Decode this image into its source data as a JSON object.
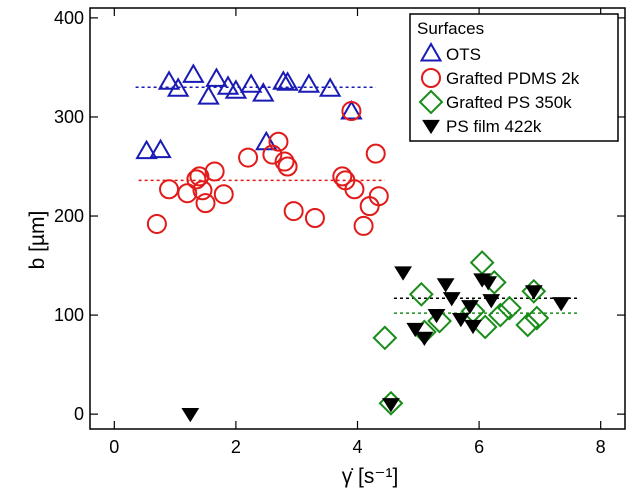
{
  "chart_data": {
    "type": "scatter",
    "xlabel": "γ̇ [s⁻¹]",
    "ylabel": "b [µm]",
    "xlim": [
      -0.4,
      8.4
    ],
    "ylim": [
      -15,
      410
    ],
    "xticks": [
      0,
      2,
      4,
      6,
      8
    ],
    "yticks": [
      0,
      100,
      200,
      300,
      400
    ],
    "legend": {
      "title": "Surfaces",
      "placement": "top-right",
      "entries": [
        "OTS",
        "Grafted PDMS 2k",
        "Grafted PS 350k",
        "PS film 422k"
      ]
    },
    "series": [
      {
        "name": "OTS",
        "marker": "triangle-up-open",
        "color": "#1a1ab5",
        "x": [
          0.53,
          0.76,
          0.9,
          1.05,
          1.3,
          1.55,
          1.68,
          1.87,
          2.0,
          2.25,
          2.45,
          2.5,
          2.78,
          2.85,
          3.2,
          3.55,
          3.9
        ],
        "y": [
          265,
          266,
          335,
          328,
          342,
          320,
          338,
          330,
          326,
          332,
          323,
          274,
          335,
          334,
          332,
          328,
          305
        ],
        "fit": {
          "x": [
            0.35,
            4.3
          ],
          "y": 330
        }
      },
      {
        "name": "Grafted PDMS 2k",
        "marker": "circle-open",
        "color": "#e11a1a",
        "x": [
          0.7,
          0.9,
          1.2,
          1.35,
          1.4,
          1.45,
          1.5,
          1.65,
          1.8,
          2.2,
          2.6,
          2.7,
          2.8,
          2.85,
          2.95,
          3.3,
          3.75,
          3.8,
          3.9,
          3.95,
          4.1,
          4.2,
          4.3,
          4.35
        ],
        "y": [
          192,
          227,
          223,
          237,
          240,
          226,
          213,
          245,
          222,
          259,
          262,
          275,
          255,
          250,
          205,
          198,
          240,
          236,
          306,
          227,
          190,
          210,
          263,
          220
        ],
        "fit": {
          "x": [
            0.4,
            4.45
          ],
          "y": 236
        }
      },
      {
        "name": "Grafted PS 350k",
        "marker": "diamond-open",
        "color": "#1a8c1a",
        "x": [
          4.45,
          4.55,
          5.05,
          5.1,
          5.35,
          5.9,
          6.05,
          6.1,
          6.25,
          6.35,
          6.5,
          6.8,
          6.9,
          6.95
        ],
        "y": [
          77,
          11,
          121,
          83,
          94,
          104,
          153,
          88,
          133,
          100,
          107,
          90,
          124,
          97
        ],
        "fit": {
          "x": [
            4.6,
            7.65
          ],
          "y": 102
        }
      },
      {
        "name": "PS film 422k",
        "marker": "triangle-down-filled",
        "color": "#000000",
        "x": [
          1.25,
          4.55,
          4.75,
          4.95,
          5.1,
          5.3,
          5.45,
          5.55,
          5.7,
          5.85,
          5.9,
          6.05,
          6.15,
          6.2,
          6.9,
          7.35
        ],
        "y": [
          0,
          10,
          143,
          86,
          77,
          100,
          131,
          117,
          96,
          109,
          89,
          136,
          133,
          115,
          124,
          112
        ],
        "fit": {
          "x": [
            4.6,
            7.65
          ],
          "y": 117
        }
      }
    ]
  }
}
